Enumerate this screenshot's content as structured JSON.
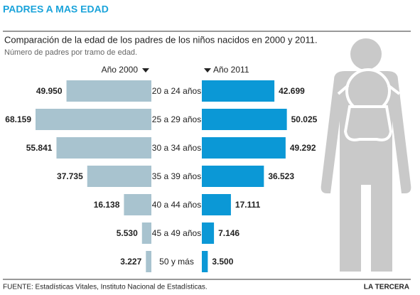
{
  "chart_data": {
    "type": "bar",
    "title": "PADRES A MAS EDAD",
    "subtitle": "Comparación de la edad de los padres de los niños nacidos en 2000 y 2011.",
    "note": "Número de padres por tramo de edad.",
    "categories": [
      "20 a 24 años",
      "25 a 29 años",
      "30 a 34 años",
      "35 a 39 años",
      "40 a 44 años",
      "45 a 49 años",
      "50 y más"
    ],
    "series": [
      {
        "name": "Año 2000",
        "color": "#a8c3cf",
        "values": [
          49950,
          68159,
          55841,
          37735,
          16138,
          5530,
          3227
        ],
        "value_labels": [
          "49.950",
          "68.159",
          "55.841",
          "37.735",
          "16.138",
          "5.530",
          "3.227"
        ]
      },
      {
        "name": "Año 2011",
        "color": "#0b98d6",
        "values": [
          42699,
          50025,
          49292,
          36523,
          17111,
          7146,
          3500
        ],
        "value_labels": [
          "42.699",
          "50.025",
          "49.292",
          "36.523",
          "17.111",
          "7.146",
          "3.500"
        ]
      }
    ],
    "source": "FUENTE: Estadísticas Vitales, Instituto Nacional de Estadísticas.",
    "credit": "LA TERCERA"
  }
}
